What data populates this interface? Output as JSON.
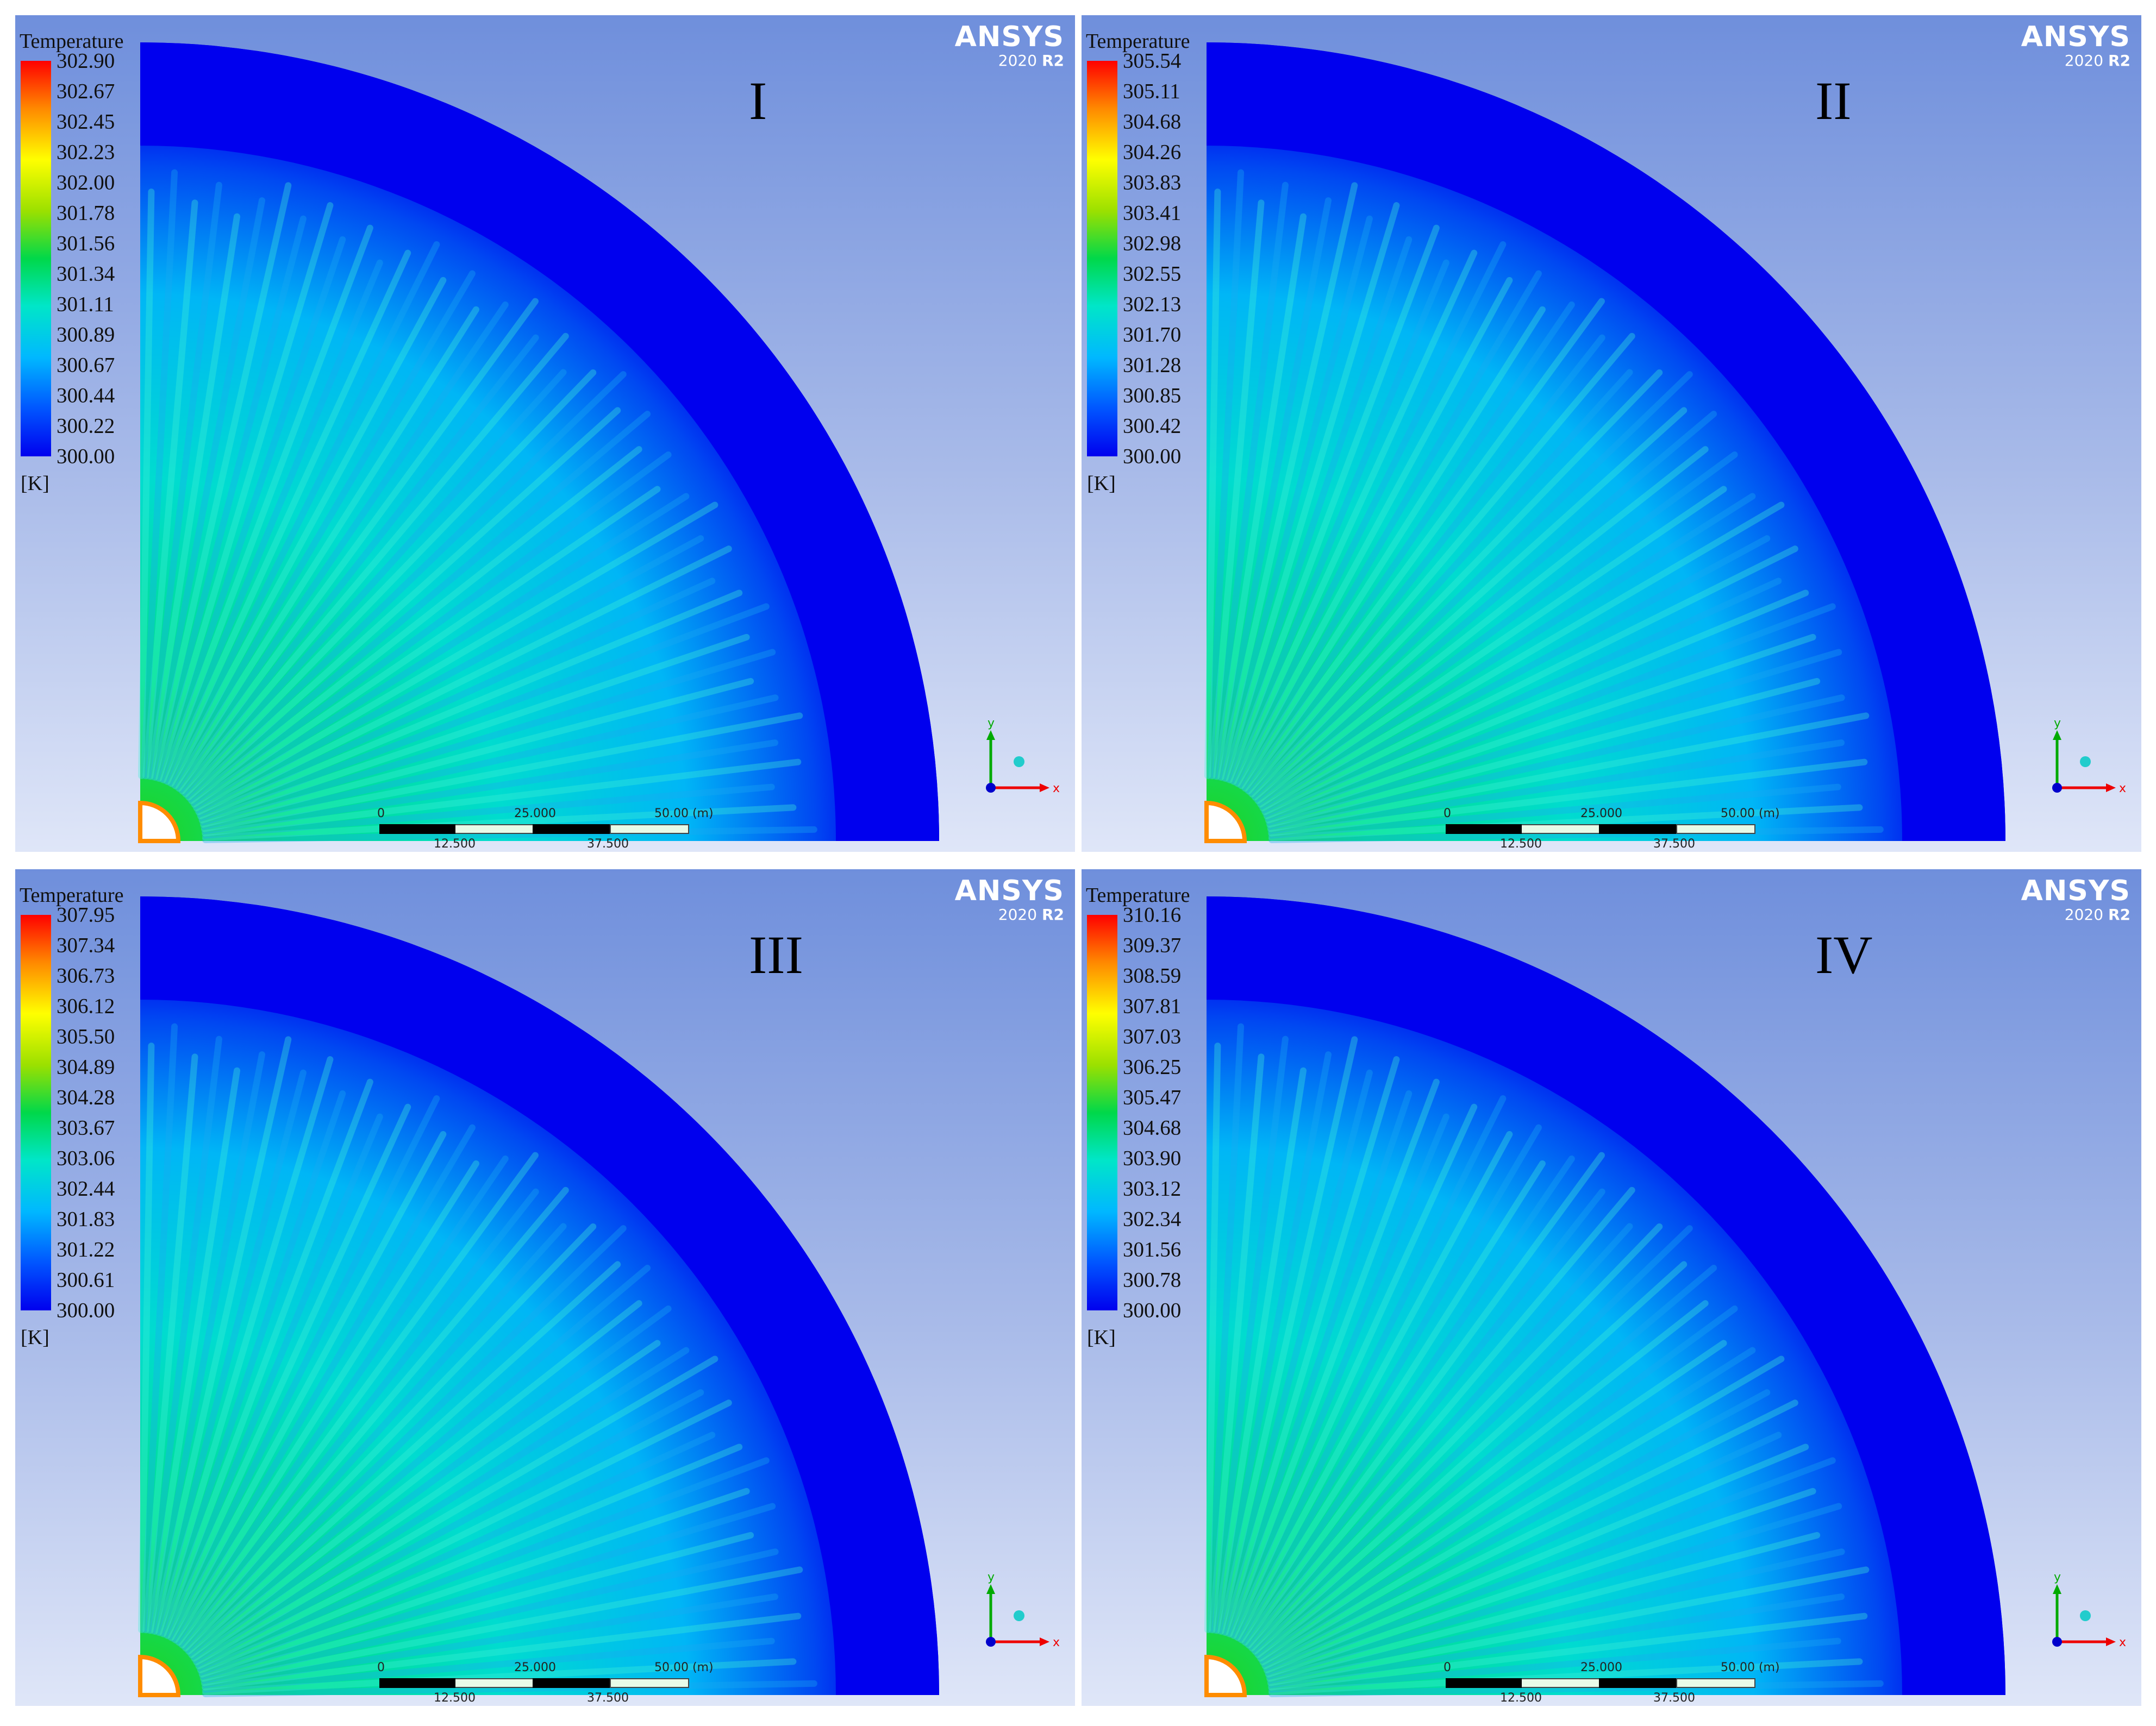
{
  "panels": [
    {
      "roman": "I",
      "legend_title": "Temperature",
      "unit": "[K]",
      "ticks": [
        "302.90",
        "302.67",
        "302.45",
        "302.23",
        "302.00",
        "301.78",
        "301.56",
        "301.34",
        "301.11",
        "300.89",
        "300.67",
        "300.44",
        "300.22",
        "300.00"
      ]
    },
    {
      "roman": "II",
      "legend_title": "Temperature",
      "unit": "[K]",
      "ticks": [
        "305.54",
        "305.11",
        "304.68",
        "304.26",
        "303.83",
        "303.41",
        "302.98",
        "302.55",
        "302.13",
        "301.70",
        "301.28",
        "300.85",
        "300.42",
        "300.00"
      ]
    },
    {
      "roman": "III",
      "legend_title": "Temperature",
      "unit": "[K]",
      "ticks": [
        "307.95",
        "307.34",
        "306.73",
        "306.12",
        "305.50",
        "304.89",
        "304.28",
        "303.67",
        "303.06",
        "302.44",
        "301.83",
        "301.22",
        "300.61",
        "300.00"
      ]
    },
    {
      "roman": "IV",
      "legend_title": "Temperature",
      "unit": "[K]",
      "ticks": [
        "310.16",
        "309.37",
        "308.59",
        "307.81",
        "307.03",
        "306.25",
        "305.47",
        "304.68",
        "303.90",
        "303.12",
        "302.34",
        "301.56",
        "300.78",
        "300.00"
      ]
    }
  ],
  "brand": {
    "name": "ANSYS",
    "version": "2020",
    "release": "R2"
  },
  "scale_bar": {
    "top_labels": [
      "0",
      "25.000",
      "50.00  (m)"
    ],
    "bottom_labels": [
      "12.500",
      "37.500"
    ]
  },
  "axis_triad": {
    "x": "x",
    "y": "y"
  },
  "colors": {
    "cold": "#0000ee",
    "mid": "#00e6c8",
    "hot": "#ff0000",
    "background_top": "#6f8fdc",
    "background_bottom": "#dfe6f8"
  }
}
